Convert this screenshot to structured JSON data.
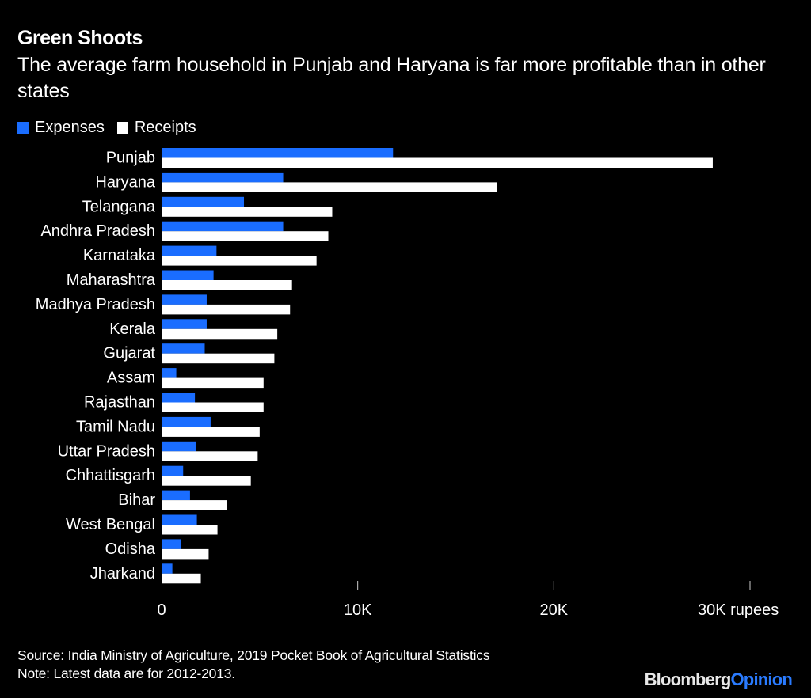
{
  "header": {
    "title": "Green Shoots",
    "subtitle": "The average farm household in Punjab and Haryana is far more profitable than in other states"
  },
  "colors": {
    "expenses": "#1a6dff",
    "receipts": "#ffffff",
    "background": "#000000",
    "tick": "#cccccc"
  },
  "footer": {
    "source": "Source: India Ministry of Agriculture, 2019 Pocket Book of Agricultural Statistics",
    "note": "Note: Latest data are for 2012-2013."
  },
  "brand": {
    "part1": "Bloomberg",
    "part2": "Opinion"
  },
  "chart_data": {
    "type": "bar",
    "orientation": "horizontal",
    "title": "Green Shoots",
    "subtitle": "The average farm household in Punjab and Haryana is far more profitable than in other states",
    "xlabel": "rupees",
    "ylabel": "",
    "xlim": [
      0,
      30000
    ],
    "xticks": [
      0,
      10000,
      20000,
      30000
    ],
    "xtick_labels": [
      "0",
      "10K",
      "20K",
      "30K rupees"
    ],
    "grid": false,
    "legend_position": "top-left",
    "categories": [
      "Punjab",
      "Haryana",
      "Telangana",
      "Andhra Pradesh",
      "Karnataka",
      "Maharashtra",
      "Madhya Pradesh",
      "Kerala",
      "Gujarat",
      "Assam",
      "Rajasthan",
      "Tamil Nadu",
      "Uttar Pradesh",
      "Chhattisgarh",
      "Bihar",
      "West Bengal",
      "Odisha",
      "Jharkand"
    ],
    "series": [
      {
        "name": "Expenses",
        "values": [
          11800,
          6200,
          4200,
          6200,
          2800,
          2650,
          2300,
          2300,
          2200,
          750,
          1700,
          2500,
          1750,
          1100,
          1450,
          1800,
          1000,
          550
        ]
      },
      {
        "name": "Receipts",
        "values": [
          28100,
          17100,
          8700,
          8500,
          7900,
          6650,
          6550,
          5900,
          5750,
          5200,
          5200,
          5000,
          4900,
          4550,
          3350,
          2850,
          2400,
          2000
        ]
      }
    ]
  }
}
